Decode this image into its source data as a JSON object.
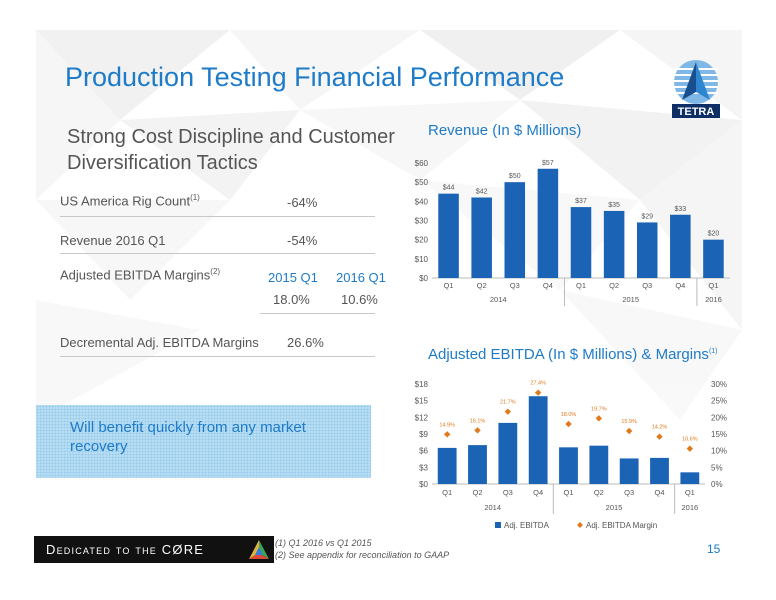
{
  "slide": {
    "title": "Production Testing Financial Performance",
    "subtitle": "Strong Cost Discipline and Customer Diversification Tactics",
    "logo_text": "TETRA",
    "page_number": "15"
  },
  "metrics": {
    "rig_count_label": "US America Rig Count",
    "rig_count_sup": "(1)",
    "rig_count_value": "-64%",
    "revenue_label": "Revenue 2016 Q1",
    "revenue_value": "-54%",
    "ebitda_label": "Adjusted EBITDA Margins",
    "ebitda_sup": "(2)",
    "col1_header": "2015 Q1",
    "col2_header": "2016 Q1",
    "col1_value": "18.0%",
    "col2_value": "10.6%",
    "decremental_label": "Decremental Adj. EBITDA Margins",
    "decremental_value": "26.6%"
  },
  "callout": {
    "text": "Will benefit quickly from any market recovery"
  },
  "footnotes": {
    "note1": "(1)  Q1 2016 vs Q1 2015",
    "note2": "(2)  See appendix for reconciliation to GAAP"
  },
  "banner": {
    "text": "Dedicated to the CØRE"
  },
  "colors": {
    "accent": "#1e7bc8",
    "bar": "#1a63b5",
    "margin_marker": "#e07a1c"
  },
  "chart_data": [
    {
      "type": "bar",
      "title": "Revenue (In $ Millions)",
      "categories": [
        "Q1",
        "Q2",
        "Q3",
        "Q4",
        "Q1",
        "Q2",
        "Q3",
        "Q4",
        "Q1"
      ],
      "groups": [
        {
          "label": "2014",
          "start": 0,
          "end": 3
        },
        {
          "label": "2015",
          "start": 4,
          "end": 7
        },
        {
          "label": "2016",
          "start": 8,
          "end": 8
        }
      ],
      "values": [
        44,
        42,
        50,
        57,
        37,
        35,
        29,
        33,
        20
      ],
      "data_labels": [
        "$44",
        "$42",
        "$50",
        "$57",
        "$37",
        "$35",
        "$29",
        "$33",
        "$20"
      ],
      "ylim": [
        0,
        60
      ],
      "yticks": [
        "$0",
        "$10",
        "$20",
        "$30",
        "$40",
        "$50",
        "$60"
      ],
      "grid": false
    },
    {
      "type": "bar",
      "title": "Adjusted EBITDA (In $ Millions) & Margins",
      "title_sup": "(1)",
      "categories": [
        "Q1",
        "Q2",
        "Q3",
        "Q4",
        "Q1",
        "Q2",
        "Q3",
        "Q4",
        "Q1"
      ],
      "groups": [
        {
          "label": "2014",
          "start": 0,
          "end": 3
        },
        {
          "label": "2015",
          "start": 4,
          "end": 7
        },
        {
          "label": "2016",
          "start": 8,
          "end": 8
        }
      ],
      "series": [
        {
          "name": "Adj. EBITDA",
          "type": "bar",
          "axis": "left",
          "values": [
            6.5,
            7.0,
            11.0,
            15.8,
            6.6,
            6.9,
            4.6,
            4.7,
            2.1
          ]
        },
        {
          "name": "Adj. EBITDA Margin",
          "type": "scatter",
          "axis": "right",
          "values": [
            14.9,
            16.1,
            21.7,
            27.4,
            18.0,
            19.7,
            15.9,
            14.2,
            10.6
          ],
          "data_labels": [
            "14.9%",
            "16.1%",
            "21.7%",
            "27.4%",
            "18.0%",
            "19.7%",
            "15.9%",
            "14.2%",
            "10.6%"
          ]
        }
      ],
      "ylim": [
        0,
        18
      ],
      "yticks": [
        "$0",
        "$3",
        "$6",
        "$9",
        "$12",
        "$15",
        "$18"
      ],
      "y2lim": [
        0,
        30
      ],
      "y2ticks": [
        "0%",
        "5%",
        "10%",
        "15%",
        "20%",
        "25%",
        "30%"
      ],
      "legend": "bottom",
      "grid": false
    }
  ]
}
